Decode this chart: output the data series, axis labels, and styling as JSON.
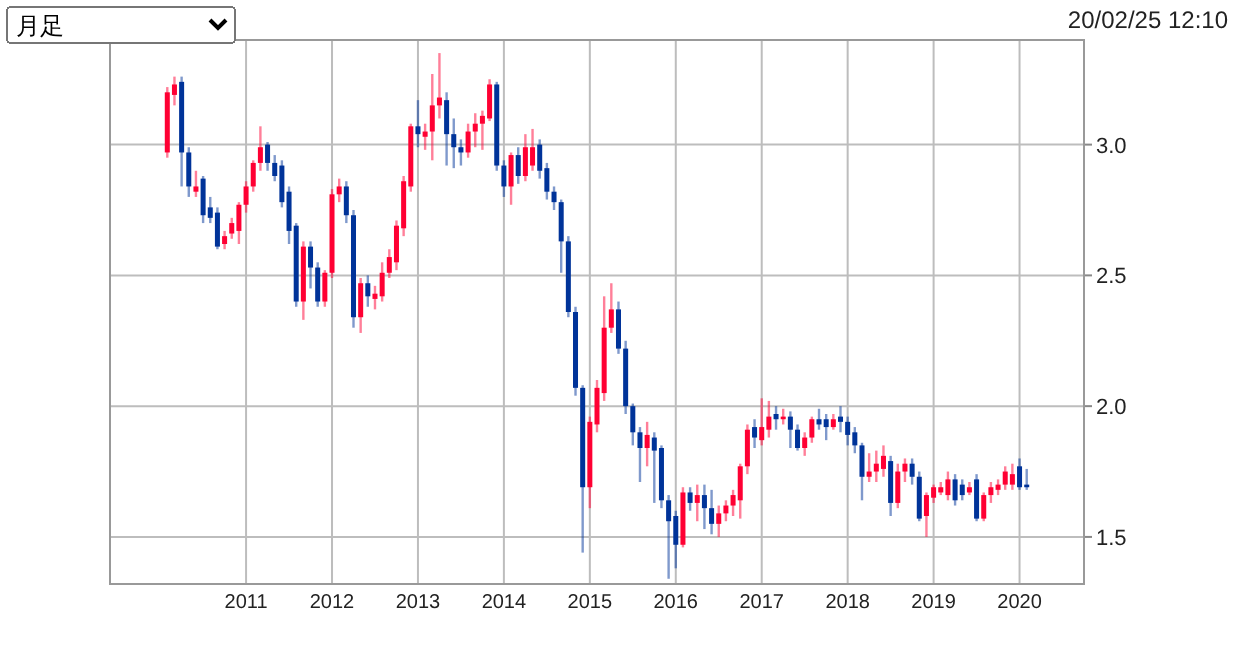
{
  "chart_data": {
    "type": "candlestick",
    "annotations": [
      "月足",
      "20/02/25 12:10"
    ],
    "x": [
      "2010-02",
      "2010-03",
      "2010-04",
      "2010-05",
      "2010-06",
      "2010-07",
      "2010-08",
      "2010-09",
      "2010-10",
      "2010-11",
      "2010-12",
      "2011-01",
      "2011-02",
      "2011-03",
      "2011-04",
      "2011-05",
      "2011-06",
      "2011-07",
      "2011-08",
      "2011-09",
      "2011-10",
      "2011-11",
      "2011-12",
      "2012-01",
      "2012-02",
      "2012-03",
      "2012-04",
      "2012-05",
      "2012-06",
      "2012-07",
      "2012-08",
      "2012-09",
      "2012-10",
      "2012-11",
      "2012-12",
      "2013-01",
      "2013-02",
      "2013-03",
      "2013-04",
      "2013-05",
      "2013-06",
      "2013-07",
      "2013-08",
      "2013-09",
      "2013-10",
      "2013-11",
      "2013-12",
      "2014-01",
      "2014-02",
      "2014-03",
      "2014-04",
      "2014-05",
      "2014-06",
      "2014-07",
      "2014-08",
      "2014-09",
      "2014-10",
      "2014-11",
      "2014-12",
      "2015-01",
      "2015-02",
      "2015-03",
      "2015-04",
      "2015-05",
      "2015-06",
      "2015-07",
      "2015-08",
      "2015-09",
      "2015-10",
      "2015-11",
      "2015-12",
      "2016-01",
      "2016-02",
      "2016-03",
      "2016-04",
      "2016-05",
      "2016-06",
      "2016-07",
      "2016-08",
      "2016-09",
      "2016-10",
      "2016-11",
      "2016-12",
      "2017-01",
      "2017-02",
      "2017-03",
      "2017-04",
      "2017-05",
      "2017-06",
      "2017-07",
      "2017-08",
      "2017-09",
      "2017-10",
      "2017-11",
      "2017-12",
      "2018-01",
      "2018-02",
      "2018-03",
      "2018-04",
      "2018-05",
      "2018-06",
      "2018-07",
      "2018-08",
      "2018-09",
      "2018-10",
      "2018-11",
      "2018-12",
      "2019-01",
      "2019-02",
      "2019-03",
      "2019-04",
      "2019-05",
      "2019-06",
      "2019-07",
      "2019-08",
      "2019-09",
      "2019-10",
      "2019-11",
      "2019-12",
      "2020-01",
      "2020-02"
    ],
    "ohlc": [
      [
        2.97,
        3.22,
        2.95,
        3.2
      ],
      [
        3.19,
        3.26,
        3.15,
        3.23
      ],
      [
        3.24,
        3.26,
        2.84,
        2.97
      ],
      [
        2.97,
        2.99,
        2.8,
        2.84
      ],
      [
        2.82,
        2.9,
        2.8,
        2.84
      ],
      [
        2.87,
        2.88,
        2.7,
        2.73
      ],
      [
        2.76,
        2.8,
        2.7,
        2.72
      ],
      [
        2.74,
        2.76,
        2.6,
        2.61
      ],
      [
        2.62,
        2.67,
        2.6,
        2.65
      ],
      [
        2.66,
        2.72,
        2.64,
        2.7
      ],
      [
        2.67,
        2.78,
        2.62,
        2.77
      ],
      [
        2.77,
        2.86,
        2.74,
        2.84
      ],
      [
        2.84,
        2.94,
        2.82,
        2.93
      ],
      [
        2.93,
        3.07,
        2.9,
        2.99
      ],
      [
        3.0,
        3.01,
        2.9,
        2.93
      ],
      [
        2.93,
        2.96,
        2.86,
        2.88
      ],
      [
        2.92,
        2.94,
        2.76,
        2.78
      ],
      [
        2.82,
        2.84,
        2.62,
        2.67
      ],
      [
        2.69,
        2.7,
        2.38,
        2.4
      ],
      [
        2.4,
        2.63,
        2.33,
        2.61
      ],
      [
        2.61,
        2.63,
        2.45,
        2.53
      ],
      [
        2.53,
        2.55,
        2.38,
        2.4
      ],
      [
        2.4,
        2.52,
        2.38,
        2.51
      ],
      [
        2.51,
        2.83,
        2.49,
        2.81
      ],
      [
        2.81,
        2.87,
        2.78,
        2.84
      ],
      [
        2.84,
        2.86,
        2.7,
        2.73
      ],
      [
        2.73,
        2.75,
        2.3,
        2.34
      ],
      [
        2.34,
        2.49,
        2.28,
        2.47
      ],
      [
        2.47,
        2.5,
        2.38,
        2.42
      ],
      [
        2.41,
        2.46,
        2.37,
        2.43
      ],
      [
        2.42,
        2.55,
        2.4,
        2.51
      ],
      [
        2.51,
        2.6,
        2.49,
        2.57
      ],
      [
        2.55,
        2.71,
        2.52,
        2.69
      ],
      [
        2.68,
        2.88,
        2.65,
        2.86
      ],
      [
        2.84,
        3.08,
        2.82,
        3.07
      ],
      [
        3.07,
        3.17,
        2.99,
        3.04
      ],
      [
        3.03,
        3.08,
        2.98,
        3.05
      ],
      [
        3.05,
        3.27,
        2.94,
        3.15
      ],
      [
        3.15,
        3.35,
        3.1,
        3.18
      ],
      [
        3.17,
        3.2,
        2.92,
        3.04
      ],
      [
        3.04,
        3.1,
        2.91,
        2.99
      ],
      [
        2.99,
        3.02,
        2.92,
        2.97
      ],
      [
        2.97,
        3.08,
        2.95,
        3.05
      ],
      [
        3.05,
        3.12,
        2.99,
        3.08
      ],
      [
        3.08,
        3.13,
        2.98,
        3.11
      ],
      [
        3.1,
        3.25,
        3.09,
        3.23
      ],
      [
        3.23,
        3.24,
        2.9,
        2.92
      ],
      [
        2.92,
        2.94,
        2.8,
        2.84
      ],
      [
        2.84,
        2.97,
        2.77,
        2.96
      ],
      [
        2.96,
        2.99,
        2.85,
        2.88
      ],
      [
        2.88,
        3.04,
        2.86,
        2.99
      ],
      [
        2.92,
        3.06,
        2.9,
        2.99
      ],
      [
        3.0,
        3.02,
        2.87,
        2.9
      ],
      [
        2.91,
        2.93,
        2.79,
        2.82
      ],
      [
        2.82,
        2.84,
        2.75,
        2.78
      ],
      [
        2.78,
        2.79,
        2.51,
        2.63
      ],
      [
        2.63,
        2.65,
        2.34,
        2.36
      ],
      [
        2.36,
        2.38,
        2.04,
        2.07
      ],
      [
        2.07,
        2.08,
        1.44,
        1.69
      ],
      [
        1.69,
        1.96,
        1.61,
        1.94
      ],
      [
        1.93,
        2.1,
        1.9,
        2.07
      ],
      [
        2.05,
        2.42,
        2.02,
        2.3
      ],
      [
        2.3,
        2.47,
        2.28,
        2.37
      ],
      [
        2.37,
        2.4,
        2.2,
        2.22
      ],
      [
        2.22,
        2.25,
        1.97,
        2.0
      ],
      [
        2.0,
        2.01,
        1.85,
        1.9
      ],
      [
        1.9,
        1.92,
        1.71,
        1.84
      ],
      [
        1.84,
        1.94,
        1.77,
        1.89
      ],
      [
        1.88,
        1.9,
        1.63,
        1.83
      ],
      [
        1.84,
        1.85,
        1.61,
        1.64
      ],
      [
        1.64,
        1.66,
        1.34,
        1.56
      ],
      [
        1.58,
        1.6,
        1.38,
        1.47
      ],
      [
        1.47,
        1.69,
        1.46,
        1.67
      ],
      [
        1.67,
        1.69,
        1.6,
        1.63
      ],
      [
        1.63,
        1.7,
        1.56,
        1.66
      ],
      [
        1.66,
        1.7,
        1.53,
        1.61
      ],
      [
        1.61,
        1.68,
        1.51,
        1.55
      ],
      [
        1.55,
        1.62,
        1.5,
        1.59
      ],
      [
        1.59,
        1.64,
        1.56,
        1.62
      ],
      [
        1.62,
        1.68,
        1.58,
        1.66
      ],
      [
        1.64,
        1.78,
        1.57,
        1.77
      ],
      [
        1.77,
        1.93,
        1.74,
        1.91
      ],
      [
        1.92,
        1.95,
        1.84,
        1.88
      ],
      [
        1.87,
        2.03,
        1.85,
        1.92
      ],
      [
        1.91,
        2.02,
        1.88,
        1.96
      ],
      [
        1.97,
        2.0,
        1.91,
        1.95
      ],
      [
        1.95,
        1.99,
        1.93,
        1.96
      ],
      [
        1.96,
        1.98,
        1.84,
        1.91
      ],
      [
        1.91,
        1.93,
        1.83,
        1.84
      ],
      [
        1.84,
        1.9,
        1.81,
        1.88
      ],
      [
        1.88,
        1.96,
        1.86,
        1.95
      ],
      [
        1.95,
        1.99,
        1.91,
        1.93
      ],
      [
        1.95,
        1.97,
        1.87,
        1.92
      ],
      [
        1.92,
        1.97,
        1.91,
        1.95
      ],
      [
        1.96,
        2.0,
        1.9,
        1.94
      ],
      [
        1.94,
        1.96,
        1.85,
        1.89
      ],
      [
        1.9,
        1.92,
        1.82,
        1.85
      ],
      [
        1.85,
        1.86,
        1.64,
        1.73
      ],
      [
        1.73,
        1.82,
        1.71,
        1.75
      ],
      [
        1.75,
        1.83,
        1.71,
        1.78
      ],
      [
        1.76,
        1.85,
        1.73,
        1.81
      ],
      [
        1.79,
        1.81,
        1.58,
        1.63
      ],
      [
        1.63,
        1.78,
        1.61,
        1.75
      ],
      [
        1.75,
        1.8,
        1.71,
        1.78
      ],
      [
        1.78,
        1.8,
        1.7,
        1.73
      ],
      [
        1.73,
        1.75,
        1.56,
        1.57
      ],
      [
        1.58,
        1.67,
        1.5,
        1.66
      ],
      [
        1.65,
        1.7,
        1.63,
        1.69
      ],
      [
        1.67,
        1.71,
        1.66,
        1.69
      ],
      [
        1.66,
        1.75,
        1.64,
        1.72
      ],
      [
        1.72,
        1.74,
        1.62,
        1.64
      ],
      [
        1.7,
        1.72,
        1.64,
        1.66
      ],
      [
        1.67,
        1.71,
        1.66,
        1.69
      ],
      [
        1.72,
        1.74,
        1.56,
        1.57
      ],
      [
        1.57,
        1.67,
        1.56,
        1.66
      ],
      [
        1.66,
        1.71,
        1.63,
        1.69
      ],
      [
        1.68,
        1.72,
        1.66,
        1.7
      ],
      [
        1.7,
        1.77,
        1.68,
        1.75
      ],
      [
        1.7,
        1.78,
        1.68,
        1.74
      ],
      [
        1.77,
        1.8,
        1.68,
        1.69
      ],
      [
        1.7,
        1.76,
        1.68,
        1.69
      ]
    ],
    "colors": [
      "#ff0033",
      "#ff0033",
      "#003399",
      "#003399",
      "#ff0033",
      "#003399",
      "#003399",
      "#003399",
      "#ff0033",
      "#ff0033",
      "#ff0033",
      "#ff0033",
      "#ff0033",
      "#ff0033",
      "#003399",
      "#003399",
      "#003399",
      "#003399",
      "#003399",
      "#ff0033",
      "#003399",
      "#003399",
      "#ff0033",
      "#ff0033",
      "#ff0033",
      "#003399",
      "#003399",
      "#ff0033",
      "#003399",
      "#ff0033",
      "#ff0033",
      "#ff0033",
      "#ff0033",
      "#ff0033",
      "#ff0033",
      "#003399",
      "#ff0033",
      "#ff0033",
      "#ff0033",
      "#003399",
      "#003399",
      "#003399",
      "#ff0033",
      "#ff0033",
      "#ff0033",
      "#ff0033",
      "#003399",
      "#003399",
      "#ff0033",
      "#003399",
      "#ff0033",
      "#ff0033",
      "#003399",
      "#003399",
      "#003399",
      "#003399",
      "#003399",
      "#003399",
      "#003399",
      "#ff0033",
      "#ff0033",
      "#ff0033",
      "#ff0033",
      "#003399",
      "#003399",
      "#003399",
      "#003399",
      "#ff0033",
      "#003399",
      "#003399",
      "#003399",
      "#003399",
      "#ff0033",
      "#003399",
      "#ff0033",
      "#003399",
      "#003399",
      "#ff0033",
      "#ff0033",
      "#ff0033",
      "#ff0033",
      "#ff0033",
      "#003399",
      "#ff0033",
      "#ff0033",
      "#003399",
      "#ff0033",
      "#003399",
      "#003399",
      "#ff0033",
      "#ff0033",
      "#003399",
      "#003399",
      "#ff0033",
      "#003399",
      "#003399",
      "#003399",
      "#003399",
      "#ff0033",
      "#ff0033",
      "#ff0033",
      "#003399",
      "#ff0033",
      "#ff0033",
      "#003399",
      "#003399",
      "#ff0033",
      "#ff0033",
      "#ff0033",
      "#ff0033",
      "#003399",
      "#003399",
      "#ff0033",
      "#003399",
      "#ff0033",
      "#ff0033",
      "#ff0033",
      "#ff0033",
      "#ff0033",
      "#003399",
      "#003399"
    ],
    "xlim": [
      "2009-06",
      "2020-10"
    ],
    "xticks": [
      {
        "value": "2011-01",
        "label": "2011"
      },
      {
        "value": "2012-01",
        "label": "2012"
      },
      {
        "value": "2013-01",
        "label": "2013"
      },
      {
        "value": "2014-01",
        "label": "2014"
      },
      {
        "value": "2015-01",
        "label": "2015"
      },
      {
        "value": "2016-01",
        "label": "2016"
      },
      {
        "value": "2017-01",
        "label": "2017"
      },
      {
        "value": "2018-01",
        "label": "2018"
      },
      {
        "value": "2019-01",
        "label": "2019"
      },
      {
        "value": "2020-01",
        "label": "2020"
      }
    ],
    "ylim": [
      1.32,
      3.4
    ],
    "yticks": [
      1.5,
      {
        "value": 2,
        "label": "2.0"
      },
      2.5,
      {
        "value": 3,
        "label": "3.0"
      }
    ],
    "grid": true
  }
}
